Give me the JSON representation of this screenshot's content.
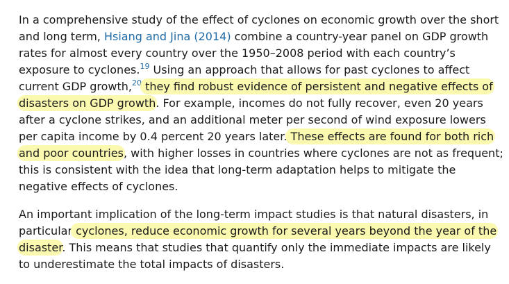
{
  "document": {
    "paragraph1": {
      "line1": "In a comprehensive study of the effect of cyclones on economic growth over the short",
      "line2_pre": "and long term, ",
      "line2_link": "Hsiang and Jina (2014)",
      "line2_post": " combine a country-year panel on GDP growth",
      "line3": "rates for almost every country over the 1950–2008 period with each country’s",
      "line4_pre": "exposure to cyclones.",
      "footnote_19": "19",
      "line4_post": " Using an approach that allows for past cyclones to affect",
      "line5_pre": "current GDP growth,",
      "footnote_20": "20",
      "line5_highlight": " they find robust evidence of persistent and negative effects of",
      "line6_highlight": "disasters on GDP growth",
      "line6_post": ". For example, incomes do not fully recover, even 20 years",
      "line7": "after a cyclone strikes, and an additional meter per second of wind exposure lowers",
      "line8_pre": "per capita income by 0.4 percent 20 years later.",
      "line8_highlight": " These effects are found for both rich",
      "line9_highlight": "and poor countries",
      "line9_post": ", with higher losses in countries where cyclones are not as frequent;",
      "line10": "this is consistent with the idea that long-term adaptation helps to mitigate the",
      "line11": "negative effects of cyclones."
    },
    "paragraph2": {
      "line1": "An important implication of the long-term impact studies is that natural disasters, in",
      "line2_pre": "particular",
      "line2_highlight": " cyclones, reduce economic growth for several years beyond the year of the",
      "line3_highlight": "disaster",
      "line3_post": ". This means that studies that quantify only the immediate impacts are likely",
      "line4": "to underestimate the total impacts of disasters."
    }
  },
  "colors": {
    "highlight": "#fbf9b0",
    "link": "#1f6aa5",
    "text": "#1a1a1a"
  }
}
